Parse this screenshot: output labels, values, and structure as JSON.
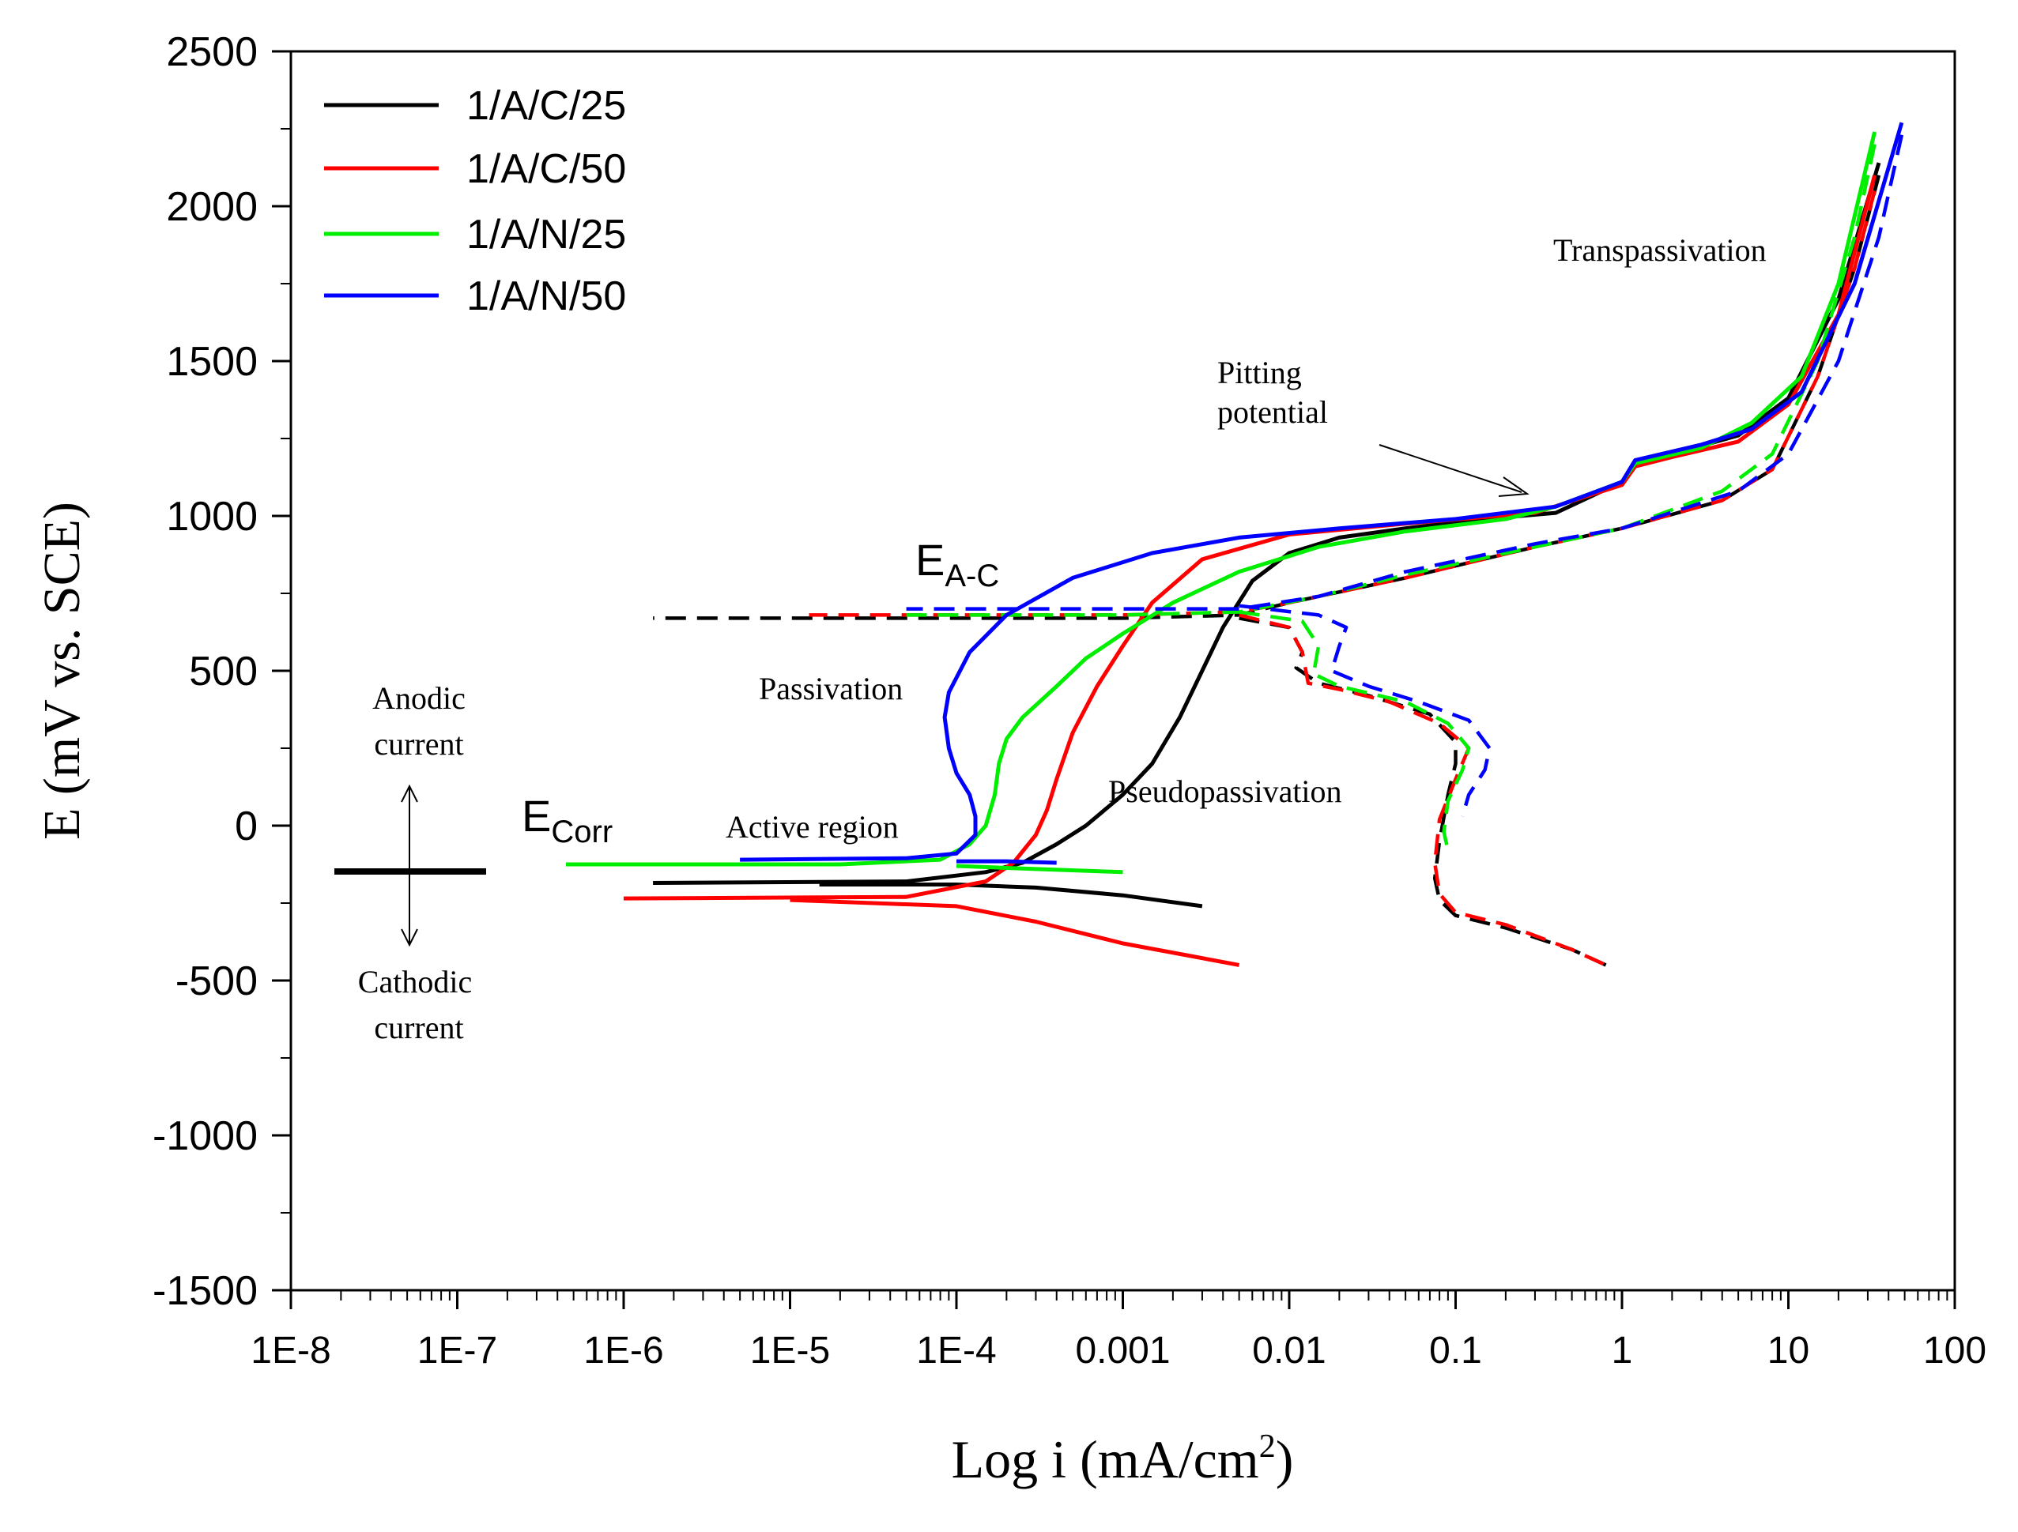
{
  "chart_data": {
    "type": "line",
    "title": "",
    "xlabel_main": "Log i (mA/cm",
    "xlabel_sup": "2",
    "xlabel_close": ")",
    "ylabel": "E (mV vs. SCE)",
    "x_scale": "log",
    "xlim": [
      1e-08,
      100
    ],
    "ylim": [
      -1500,
      2500
    ],
    "x_ticks": [
      1e-08,
      1e-07,
      1e-06,
      1e-05,
      0.0001,
      0.001,
      0.01,
      0.1,
      1,
      10,
      100
    ],
    "x_tick_labels": [
      "1E-8",
      "1E-7",
      "1E-6",
      "1E-5",
      "1E-4",
      "0.001",
      "0.01",
      "0.1",
      "1",
      "10",
      "100"
    ],
    "y_ticks": [
      -1500,
      -1000,
      -500,
      0,
      500,
      1000,
      1500,
      2000,
      2500
    ],
    "y_tick_labels": [
      "-1500",
      "-1000",
      "-500",
      "0",
      "500",
      "1000",
      "1500",
      "2000",
      "2500"
    ],
    "grid": false,
    "legend_position": "top-left",
    "series": [
      {
        "name": "1/A/C/25",
        "color": "#000000",
        "forward": [
          [
            1.5e-06,
            -185
          ],
          [
            5e-05,
            -180
          ],
          [
            0.00015,
            -150
          ],
          [
            0.00025,
            -120
          ],
          [
            0.0004,
            -60
          ],
          [
            0.0006,
            0
          ],
          [
            0.001,
            100
          ],
          [
            0.0015,
            200
          ],
          [
            0.0022,
            350
          ],
          [
            0.003,
            500
          ],
          [
            0.004,
            640
          ],
          [
            0.006,
            790
          ],
          [
            0.01,
            880
          ],
          [
            0.02,
            930
          ],
          [
            0.05,
            960
          ],
          [
            0.15,
            990
          ],
          [
            0.4,
            1010
          ],
          [
            1,
            1110
          ],
          [
            1.2,
            1170
          ],
          [
            2,
            1200
          ],
          [
            5,
            1260
          ],
          [
            10,
            1380
          ],
          [
            20,
            1700
          ],
          [
            35,
            2140
          ]
        ],
        "cathodic": [
          [
            1.5e-05,
            -190
          ],
          [
            0.0001,
            -190
          ],
          [
            0.0003,
            -200
          ],
          [
            0.001,
            -225
          ],
          [
            0.003,
            -260
          ]
        ],
        "reverse": [
          [
            35,
            2100
          ],
          [
            25,
            1800
          ],
          [
            15,
            1450
          ],
          [
            8,
            1150
          ],
          [
            4,
            1050
          ],
          [
            1,
            960
          ],
          [
            0.3,
            900
          ],
          [
            0.05,
            800
          ],
          [
            0.01,
            720
          ],
          [
            0.005,
            680
          ],
          [
            0.001,
            670
          ],
          [
            1e-05,
            670
          ],
          [
            1.5e-06,
            670
          ]
        ],
        "reverse_low": [
          [
            0.005,
            670
          ],
          [
            0.01,
            640
          ],
          [
            0.012,
            560
          ],
          [
            0.011,
            510
          ],
          [
            0.015,
            460
          ],
          [
            0.03,
            420
          ],
          [
            0.07,
            360
          ],
          [
            0.1,
            270
          ],
          [
            0.1,
            200
          ],
          [
            0.09,
            100
          ],
          [
            0.08,
            -50
          ],
          [
            0.075,
            -170
          ],
          [
            0.08,
            -240
          ],
          [
            0.1,
            -290
          ],
          [
            0.2,
            -330
          ],
          [
            0.5,
            -400
          ],
          [
            0.8,
            -450
          ]
        ]
      },
      {
        "name": "1/A/C/50",
        "color": "#ff0000",
        "forward": [
          [
            1e-06,
            -235
          ],
          [
            5e-05,
            -230
          ],
          [
            0.00015,
            -180
          ],
          [
            0.00022,
            -120
          ],
          [
            0.0003,
            -30
          ],
          [
            0.00035,
            50
          ],
          [
            0.0004,
            150
          ],
          [
            0.0005,
            300
          ],
          [
            0.0007,
            450
          ],
          [
            0.001,
            580
          ],
          [
            0.0015,
            720
          ],
          [
            0.003,
            860
          ],
          [
            0.01,
            940
          ],
          [
            0.05,
            975
          ],
          [
            0.3,
            1010
          ],
          [
            1,
            1100
          ],
          [
            1.2,
            1160
          ],
          [
            2,
            1190
          ],
          [
            5,
            1240
          ],
          [
            10,
            1360
          ],
          [
            20,
            1650
          ],
          [
            33,
            2100
          ]
        ],
        "cathodic": [
          [
            1e-05,
            -240
          ],
          [
            0.0001,
            -260
          ],
          [
            0.0003,
            -310
          ],
          [
            0.001,
            -380
          ],
          [
            0.005,
            -450
          ]
        ],
        "reverse": [
          [
            33,
            2050
          ],
          [
            25,
            1800
          ],
          [
            15,
            1450
          ],
          [
            8,
            1150
          ],
          [
            4,
            1050
          ],
          [
            1,
            960
          ],
          [
            0.3,
            900
          ],
          [
            0.05,
            800
          ],
          [
            0.01,
            720
          ],
          [
            0.005,
            690
          ],
          [
            0.001,
            680
          ],
          [
            1.3e-05,
            680
          ]
        ],
        "reverse_low": [
          [
            0.005,
            680
          ],
          [
            0.01,
            640
          ],
          [
            0.012,
            560
          ],
          [
            0.013,
            460
          ],
          [
            0.02,
            440
          ],
          [
            0.04,
            400
          ],
          [
            0.08,
            330
          ],
          [
            0.12,
            250
          ],
          [
            0.1,
            150
          ],
          [
            0.08,
            20
          ],
          [
            0.075,
            -120
          ],
          [
            0.08,
            -220
          ],
          [
            0.1,
            -280
          ],
          [
            0.2,
            -320
          ],
          [
            0.5,
            -400
          ],
          [
            0.8,
            -450
          ]
        ]
      },
      {
        "name": "1/A/N/25",
        "color": "#00ee00",
        "forward": [
          [
            4.5e-07,
            -125
          ],
          [
            2e-05,
            -125
          ],
          [
            8e-05,
            -110
          ],
          [
            0.00012,
            -60
          ],
          [
            0.00015,
            0
          ],
          [
            0.00017,
            100
          ],
          [
            0.00018,
            200
          ],
          [
            0.0002,
            280
          ],
          [
            0.00025,
            350
          ],
          [
            0.0004,
            450
          ],
          [
            0.0006,
            540
          ],
          [
            0.001,
            620
          ],
          [
            0.002,
            720
          ],
          [
            0.005,
            820
          ],
          [
            0.015,
            900
          ],
          [
            0.05,
            950
          ],
          [
            0.2,
            990
          ],
          [
            0.4,
            1030
          ],
          [
            1,
            1110
          ],
          [
            1.2,
            1170
          ],
          [
            3,
            1220
          ],
          [
            6,
            1300
          ],
          [
            12,
            1450
          ],
          [
            20,
            1750
          ],
          [
            33,
            2240
          ]
        ],
        "cathodic": [
          [
            0.0001,
            -130
          ],
          [
            0.0003,
            -140
          ],
          [
            0.001,
            -150
          ]
        ],
        "reverse": [
          [
            33,
            2200
          ],
          [
            25,
            1900
          ],
          [
            15,
            1500
          ],
          [
            8,
            1200
          ],
          [
            4,
            1080
          ],
          [
            1,
            960
          ],
          [
            0.3,
            900
          ],
          [
            0.05,
            810
          ],
          [
            0.015,
            740
          ],
          [
            0.005,
            690
          ],
          [
            0.001,
            680
          ],
          [
            5e-05,
            680
          ]
        ],
        "reverse_low": [
          [
            0.005,
            690
          ],
          [
            0.012,
            660
          ],
          [
            0.015,
            580
          ],
          [
            0.014,
            490
          ],
          [
            0.02,
            450
          ],
          [
            0.05,
            400
          ],
          [
            0.09,
            330
          ],
          [
            0.12,
            250
          ],
          [
            0.11,
            180
          ],
          [
            0.09,
            80
          ],
          [
            0.085,
            -20
          ],
          [
            0.09,
            -80
          ]
        ]
      },
      {
        "name": "1/A/N/50",
        "color": "#0000ff",
        "forward": [
          [
            5e-06,
            -110
          ],
          [
            5e-05,
            -105
          ],
          [
            0.0001,
            -90
          ],
          [
            0.00013,
            -30
          ],
          [
            0.00013,
            30
          ],
          [
            0.00012,
            100
          ],
          [
            0.0001,
            170
          ],
          [
            9e-05,
            250
          ],
          [
            8.5e-05,
            350
          ],
          [
            9e-05,
            430
          ],
          [
            0.00012,
            560
          ],
          [
            0.0002,
            680
          ],
          [
            0.0005,
            800
          ],
          [
            0.0015,
            880
          ],
          [
            0.005,
            930
          ],
          [
            0.02,
            960
          ],
          [
            0.1,
            990
          ],
          [
            0.4,
            1030
          ],
          [
            1,
            1110
          ],
          [
            1.2,
            1180
          ],
          [
            3,
            1230
          ],
          [
            6,
            1280
          ],
          [
            12,
            1400
          ],
          [
            25,
            1750
          ],
          [
            48,
            2270
          ]
        ],
        "cathodic": [
          [
            0.0001,
            -115
          ],
          [
            0.0002,
            -115
          ],
          [
            0.0004,
            -120
          ]
        ],
        "reverse": [
          [
            48,
            2230
          ],
          [
            35,
            1900
          ],
          [
            20,
            1500
          ],
          [
            10,
            1200
          ],
          [
            5,
            1080
          ],
          [
            1,
            960
          ],
          [
            0.3,
            910
          ],
          [
            0.05,
            820
          ],
          [
            0.015,
            740
          ],
          [
            0.005,
            700
          ],
          [
            0.001,
            700
          ],
          [
            5e-05,
            700
          ]
        ],
        "reverse_low": [
          [
            0.005,
            710
          ],
          [
            0.015,
            680
          ],
          [
            0.022,
            640
          ],
          [
            0.02,
            580
          ],
          [
            0.018,
            500
          ],
          [
            0.03,
            450
          ],
          [
            0.06,
            400
          ],
          [
            0.12,
            340
          ],
          [
            0.16,
            250
          ],
          [
            0.15,
            180
          ],
          [
            0.12,
            100
          ],
          [
            0.11,
            30
          ]
        ]
      }
    ],
    "annotations": {
      "transpassivation": "Transpassivation",
      "pitting_line1": "Pitting",
      "pitting_line2": "potential",
      "e_ac_main": "E",
      "e_ac_sub": "A-C",
      "e_corr_main": "E",
      "e_corr_sub": "Corr",
      "passivation": "Passivation",
      "active_region": "Active region",
      "pseudopassivation": "Pseudopassivation",
      "anodic_line1": "Anodic",
      "anodic_line2": "current",
      "cathodic_line1": "Cathodic",
      "cathodic_line2": "current"
    }
  }
}
